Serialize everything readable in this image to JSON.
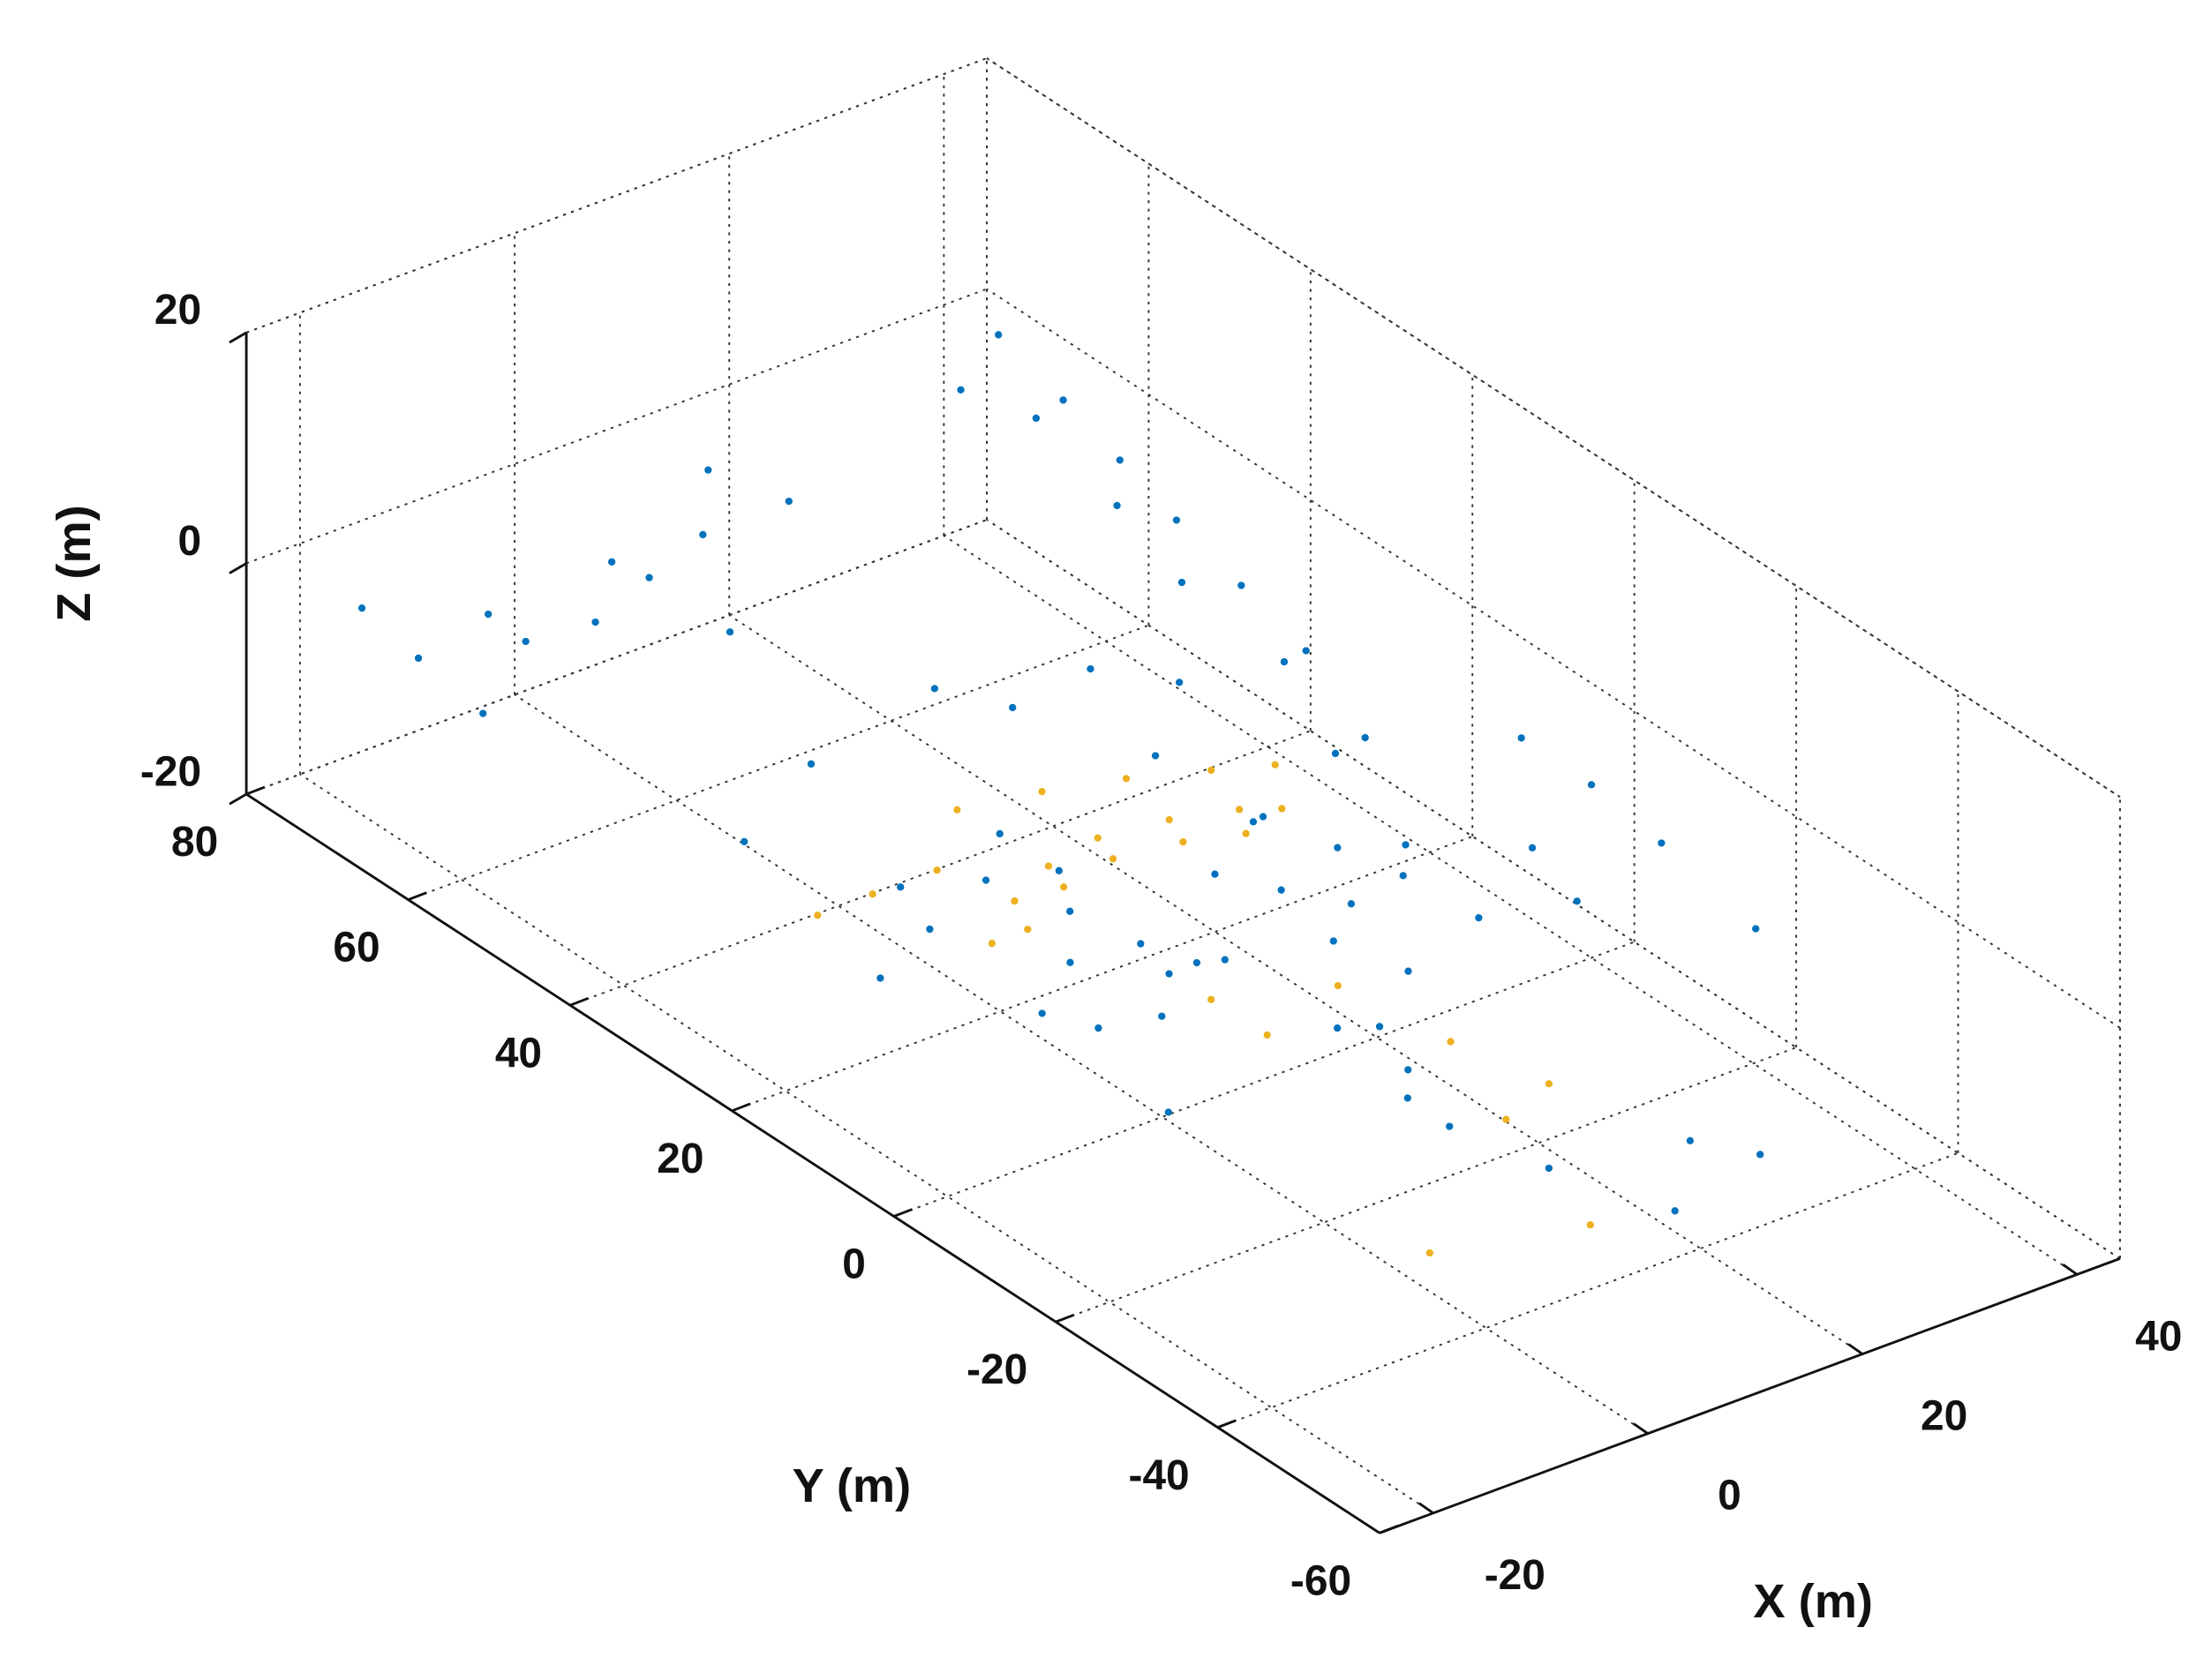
{
  "chart_data": {
    "type": "scatter3d",
    "xlabel": "X (m)",
    "ylabel": "Y (m)",
    "zlabel": "Z (m)",
    "xlim": [
      -25,
      44
    ],
    "ylim": [
      -60,
      80
    ],
    "zlim": [
      -20,
      20
    ],
    "xticks": [
      -20,
      0,
      20,
      40
    ],
    "yticks": [
      -60,
      -40,
      -20,
      0,
      20,
      40,
      60,
      80
    ],
    "zticks": [
      -20,
      0,
      20
    ],
    "grid": true,
    "series": [
      {
        "color": "#0072bd",
        "x": [
          12.4,
          10.3,
          14.9,
          0.2,
          24.6,
          28.1,
          31.8,
          27.5,
          25.8,
          33.8,
          42.2,
          13,
          3.3,
          16.8,
          14.1,
          27.1,
          19.8,
          30,
          -1.3,
          2.2,
          -6.2,
          1.2,
          9,
          11.9,
          4.4,
          16.4,
          14.2,
          16.2,
          20,
          22,
          8,
          18,
          6,
          30,
          26,
          34,
          10,
          -15,
          -10,
          -5,
          0,
          5,
          10,
          15,
          -12,
          3,
          8,
          -18,
          12,
          30,
          30,
          30,
          30,
          30,
          30,
          32,
          32,
          32,
          28,
          34,
          34,
          40,
          42,
          38,
          44,
          36,
          20,
          15,
          25,
          5,
          -5,
          22,
          28,
          35
        ],
        "y": [
          19.1,
          12.8,
          12,
          15.1,
          17.9,
          26,
          20.5,
          13.1,
          3.8,
          5.7,
          4.7,
          37.3,
          36.7,
          -8.1,
          -16.8,
          -29.3,
          -37.1,
          -34.1,
          -2.5,
          10.8,
          26.6,
          30.3,
          33.7,
          11.5,
          17.2,
          0.1,
          -11.5,
          -26.3,
          20,
          8,
          22,
          -3,
          8,
          10,
          22,
          15,
          26,
          72,
          70,
          72,
          68,
          70,
          70,
          66,
          68,
          74,
          64,
          75,
          72,
          60,
          52,
          45,
          38,
          30,
          22,
          58,
          48,
          40,
          62,
          30,
          20,
          0,
          -6,
          6,
          -15,
          2,
          45,
          48,
          42,
          50,
          45,
          30,
          35,
          25
        ],
        "z": [
          -18,
          -17,
          -17,
          -18,
          -17,
          -16,
          -17,
          -17,
          -18,
          -17,
          -18,
          -17,
          -18,
          -18,
          -18,
          -18,
          -18,
          -18,
          -18,
          -18,
          -18,
          -18,
          -18,
          -16,
          -16,
          -18,
          -18,
          -18,
          -15,
          -16,
          -15,
          -17,
          -17,
          -14,
          -13,
          -15,
          -14,
          -8,
          -5,
          -10,
          -3,
          -7,
          -5,
          -2,
          -12,
          -12,
          -10,
          -4,
          -1,
          10,
          8,
          6,
          4,
          2,
          0,
          3,
          0,
          -3,
          5,
          -6,
          -8,
          -5,
          -8,
          -3,
          -12,
          -10,
          -12,
          -10,
          -9,
          -14,
          -15,
          -10,
          -8,
          -12
        ]
      },
      {
        "color": "#edb120",
        "x": [
          3.6,
          8.8,
          14,
          19.5,
          25.4,
          30.5,
          33.1,
          7,
          13,
          18.5,
          24.2,
          28.7,
          13.7,
          20.4,
          26.6,
          32.4,
          36.7,
          -4.2,
          1,
          7,
          11.5,
          11.6,
          20.3,
          21.9,
          23.9,
          13.5,
          1.4,
          18.1
        ],
        "y": [
          25.8,
          29.9,
          32.6,
          33.8,
          32.8,
          30.9,
          29.1,
          25.9,
          29.4,
          30.6,
          29.5,
          27.7,
          43.5,
          41.9,
          39.7,
          36.9,
          34.7,
          37,
          37.1,
          37.1,
          9.2,
          2.4,
          5.2,
          -6.6,
          -16.1,
          -35,
          -31.2,
          -18.5
        ],
        "z": [
          -18,
          -18,
          -18,
          -18,
          -18,
          -18,
          -18,
          -18,
          -18,
          -18,
          -18,
          -18,
          -18,
          -18,
          -18,
          -18,
          -18,
          -18,
          -18,
          -18,
          -18,
          -18,
          -18,
          -18,
          -18,
          -18,
          -18,
          -18
        ]
      }
    ]
  }
}
